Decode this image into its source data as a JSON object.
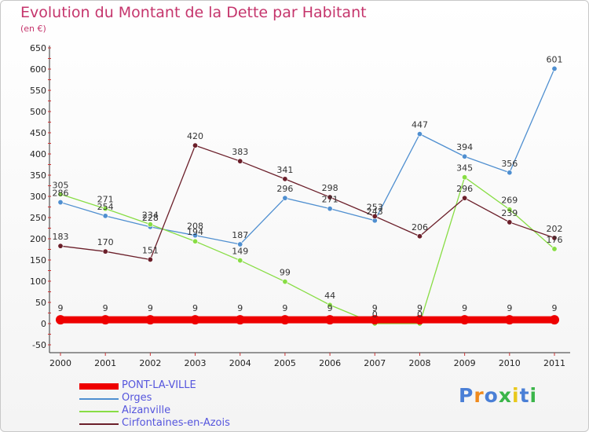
{
  "chart_data": {
    "type": "line",
    "title": "Evolution du Montant de la Dette par Habitant",
    "subtitle": "(en €)",
    "x": [
      "2000",
      "2001",
      "2002",
      "2003",
      "2004",
      "2005",
      "2006",
      "2007",
      "2008",
      "2009",
      "2010",
      "2011"
    ],
    "ylim": [
      -50,
      650
    ],
    "yticks": [
      -50,
      0,
      50,
      100,
      150,
      200,
      250,
      300,
      350,
      400,
      450,
      500,
      550,
      600,
      650
    ],
    "grid": false,
    "legend_position": "bottom-left",
    "series": [
      {
        "name": "Orges",
        "color": "#4f8fd0",
        "values": [
          286,
          254,
          228,
          208,
          187,
          296,
          271,
          243,
          447,
          394,
          356,
          601
        ],
        "labels": [
          "286",
          "254",
          "228",
          "208",
          "187",
          "296",
          "271",
          "243",
          "447",
          "394",
          "356",
          "601"
        ]
      },
      {
        "name": "Aizanville",
        "color": "#88dd44",
        "values": [
          305,
          271,
          234,
          194,
          149,
          99,
          44,
          0,
          0,
          345,
          269,
          176
        ],
        "labels": [
          "305",
          "271",
          "234",
          "194",
          "149",
          "99",
          "44",
          "0",
          "0",
          "345",
          "269",
          "176"
        ]
      },
      {
        "name": "Cirfontaines-en-Azois",
        "color": "#6b1f2a",
        "values": [
          183,
          170,
          151,
          420,
          383,
          341,
          298,
          253,
          206,
          296,
          239,
          202
        ],
        "labels": [
          "183",
          "170",
          "151",
          "420",
          "383",
          "341",
          "298",
          "253",
          "206",
          "296",
          "239",
          "202"
        ]
      },
      {
        "name": "PONT-LA-VILLE",
        "color": "#ee0000",
        "values": [
          9,
          9,
          9,
          9,
          9,
          9,
          9,
          9,
          9,
          9,
          9,
          9
        ],
        "labels": [
          "9",
          "9",
          "9",
          "9",
          "9",
          "9",
          "9",
          "9",
          "9",
          "9",
          "9",
          "9"
        ]
      }
    ]
  },
  "legend": {
    "items": [
      {
        "name": "PONT-LA-VILLE",
        "color": "#ee0000",
        "thickness": "thick"
      },
      {
        "name": "Orges",
        "color": "#4f8fd0",
        "thickness": "thin"
      },
      {
        "name": "Aizanville",
        "color": "#88dd44",
        "thickness": "thin"
      },
      {
        "name": "Cirfontaines-en-Azois",
        "color": "#6b1f2a",
        "thickness": "thin"
      }
    ]
  },
  "logo": {
    "text": "Proxiti",
    "letter_colors": [
      "#4a7fd6",
      "#f08a1c",
      "#4a7fd6",
      "#3bb54a",
      "#e8c81c",
      "#4a7fd6",
      "#3bb54a"
    ]
  }
}
